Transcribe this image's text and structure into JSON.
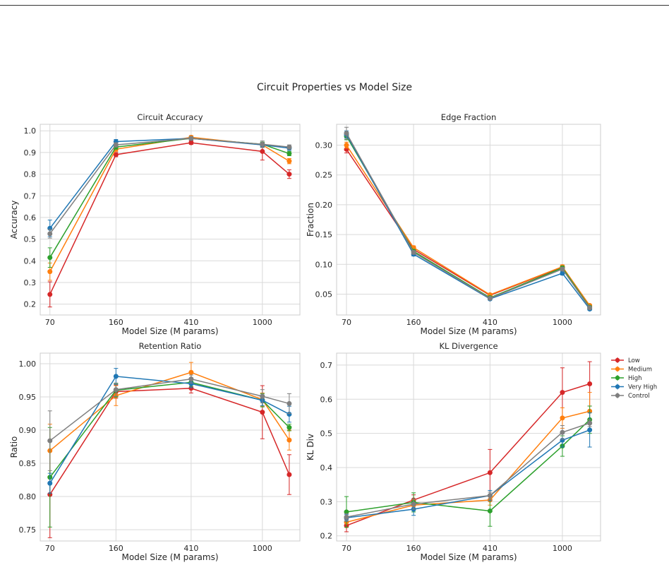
{
  "figure": {
    "suptitle": "Circuit Properties vs Model Size"
  },
  "colors": {
    "Low": "#d62728",
    "Medium": "#ff7f0e",
    "High": "#2ca02c",
    "Very High": "#1f77b4",
    "Control": "#7f7f7f",
    "grid": "#d9d9d9",
    "axes_edge": "#cccccc"
  },
  "legend": {
    "placement": "outside-right",
    "entries": [
      "Low",
      "Medium",
      "High",
      "Very High",
      "Control"
    ]
  },
  "chart_data": [
    {
      "type": "line",
      "title": "Circuit Accuracy",
      "xlabel": "Model Size (M params)",
      "ylabel": "Accuracy",
      "x": [
        70,
        160,
        410,
        1000,
        1400
      ],
      "xticks": [
        "70",
        "160",
        "410",
        "1000"
      ],
      "xtick_values": [
        70,
        160,
        410,
        1000
      ],
      "xscale": "log",
      "xlim": [
        62,
        1600
      ],
      "ylim": [
        0.15,
        1.03
      ],
      "yticks": [
        0.2,
        0.3,
        0.4,
        0.5,
        0.6,
        0.7,
        0.8,
        0.9,
        1.0
      ],
      "ytick_labels": [
        "0.2",
        "0.3",
        "0.4",
        "0.5",
        "0.6",
        "0.7",
        "0.8",
        "0.9",
        "1.0"
      ],
      "grid": true,
      "series": [
        {
          "name": "Low",
          "values": [
            0.245,
            0.89,
            0.945,
            0.905,
            0.8
          ],
          "errors": [
            0.058,
            0.01,
            0.008,
            0.04,
            0.02
          ]
        },
        {
          "name": "Medium",
          "values": [
            0.35,
            0.915,
            0.97,
            0.935,
            0.86
          ],
          "errors": [
            0.04,
            0.01,
            0.008,
            0.012,
            0.012
          ]
        },
        {
          "name": "High",
          "values": [
            0.415,
            0.925,
            0.965,
            0.938,
            0.895
          ],
          "errors": [
            0.045,
            0.01,
            0.008,
            0.01,
            0.01
          ]
        },
        {
          "name": "Very High",
          "values": [
            0.55,
            0.95,
            0.965,
            0.935,
            0.92
          ],
          "errors": [
            0.038,
            0.01,
            0.008,
            0.01,
            0.01
          ]
        },
        {
          "name": "Control",
          "values": [
            0.525,
            0.935,
            0.965,
            0.938,
            0.925
          ],
          "errors": [
            0.02,
            0.01,
            0.008,
            0.015,
            0.01
          ]
        }
      ]
    },
    {
      "type": "line",
      "title": "Edge Fraction",
      "xlabel": "Model Size (M params)",
      "ylabel": "Fraction",
      "x": [
        70,
        160,
        410,
        1000,
        1400
      ],
      "xticks": [
        "70",
        "160",
        "410",
        "1000"
      ],
      "xtick_values": [
        70,
        160,
        410,
        1000
      ],
      "xscale": "log",
      "xlim": [
        62,
        1600
      ],
      "ylim": [
        0.015,
        0.335
      ],
      "yticks": [
        0.05,
        0.1,
        0.15,
        0.2,
        0.25,
        0.3
      ],
      "ytick_labels": [
        "0.05",
        "0.10",
        "0.15",
        "0.20",
        "0.25",
        "0.30"
      ],
      "grid": true,
      "series": [
        {
          "name": "Low",
          "values": [
            0.293,
            0.125,
            0.048,
            0.095,
            0.03
          ],
          "errors": [
            0.006,
            0.003,
            0.002,
            0.003,
            0.002
          ]
        },
        {
          "name": "Medium",
          "values": [
            0.3,
            0.128,
            0.049,
            0.096,
            0.031
          ],
          "errors": [
            0.005,
            0.003,
            0.002,
            0.003,
            0.002
          ]
        },
        {
          "name": "High",
          "values": [
            0.315,
            0.122,
            0.044,
            0.094,
            0.028
          ],
          "errors": [
            0.006,
            0.003,
            0.002,
            0.003,
            0.002
          ]
        },
        {
          "name": "Very High",
          "values": [
            0.318,
            0.117,
            0.042,
            0.085,
            0.025
          ],
          "errors": [
            0.006,
            0.003,
            0.002,
            0.003,
            0.002
          ]
        },
        {
          "name": "Control",
          "values": [
            0.32,
            0.12,
            0.043,
            0.092,
            0.027
          ],
          "errors": [
            0.01,
            0.003,
            0.002,
            0.003,
            0.002
          ]
        }
      ]
    },
    {
      "type": "line",
      "title": "Retention Ratio",
      "xlabel": "Model Size (M params)",
      "ylabel": "Ratio",
      "x": [
        70,
        160,
        410,
        1000,
        1400
      ],
      "xticks": [
        "70",
        "160",
        "410",
        "1000"
      ],
      "xtick_values": [
        70,
        160,
        410,
        1000
      ],
      "xscale": "log",
      "xlim": [
        62,
        1600
      ],
      "ylim": [
        0.733,
        1.016
      ],
      "yticks": [
        0.75,
        0.8,
        0.85,
        0.9,
        0.95,
        1.0
      ],
      "ytick_labels": [
        "0.75",
        "0.80",
        "0.85",
        "0.90",
        "0.95",
        "1.00"
      ],
      "grid": true,
      "series": [
        {
          "name": "Low",
          "values": [
            0.803,
            0.958,
            0.963,
            0.927,
            0.833
          ],
          "errors": [
            0.065,
            0.01,
            0.007,
            0.04,
            0.03
          ]
        },
        {
          "name": "Medium",
          "values": [
            0.869,
            0.952,
            0.987,
            0.946,
            0.885
          ],
          "errors": [
            0.04,
            0.015,
            0.015,
            0.01,
            0.015
          ]
        },
        {
          "name": "High",
          "values": [
            0.829,
            0.96,
            0.972,
            0.945,
            0.904
          ],
          "errors": [
            0.075,
            0.01,
            0.006,
            0.01,
            0.005
          ]
        },
        {
          "name": "Very High",
          "values": [
            0.82,
            0.981,
            0.97,
            0.945,
            0.924
          ],
          "errors": [
            0.015,
            0.012,
            0.006,
            0.008,
            0.012
          ]
        },
        {
          "name": "Control",
          "values": [
            0.884,
            0.961,
            0.977,
            0.951,
            0.94
          ],
          "errors": [
            0.045,
            0.01,
            0.006,
            0.01,
            0.015
          ]
        }
      ]
    },
    {
      "type": "line",
      "title": "KL Divergence",
      "xlabel": "Model Size (M params)",
      "ylabel": "KL Div",
      "x": [
        70,
        160,
        410,
        1000,
        1400
      ],
      "xticks": [
        "70",
        "160",
        "410",
        "1000"
      ],
      "xtick_values": [
        70,
        160,
        410,
        1000
      ],
      "xscale": "log",
      "xlim": [
        62,
        1600
      ],
      "ylim": [
        0.185,
        0.735
      ],
      "yticks": [
        0.2,
        0.3,
        0.4,
        0.5,
        0.6,
        0.7
      ],
      "ytick_labels": [
        "0.2",
        "0.3",
        "0.4",
        "0.5",
        "0.6",
        "0.7"
      ],
      "grid": true,
      "series": [
        {
          "name": "Low",
          "values": [
            0.23,
            0.305,
            0.385,
            0.62,
            0.645
          ],
          "errors": [
            0.018,
            0.015,
            0.068,
            0.072,
            0.065
          ]
        },
        {
          "name": "Medium",
          "values": [
            0.24,
            0.29,
            0.305,
            0.545,
            0.565
          ],
          "errors": [
            0.015,
            0.015,
            0.015,
            0.03,
            0.055
          ]
        },
        {
          "name": "High",
          "values": [
            0.27,
            0.298,
            0.273,
            0.463,
            0.54
          ],
          "errors": [
            0.045,
            0.028,
            0.045,
            0.03,
            0.04
          ]
        },
        {
          "name": "Very High",
          "values": [
            0.253,
            0.278,
            0.318,
            0.48,
            0.51
          ],
          "errors": [
            0.01,
            0.018,
            0.015,
            0.02,
            0.05
          ]
        },
        {
          "name": "Control",
          "values": [
            0.255,
            0.293,
            0.318,
            0.503,
            0.53
          ],
          "errors": [
            0.01,
            0.015,
            0.01,
            0.02,
            0.01
          ]
        }
      ]
    }
  ]
}
